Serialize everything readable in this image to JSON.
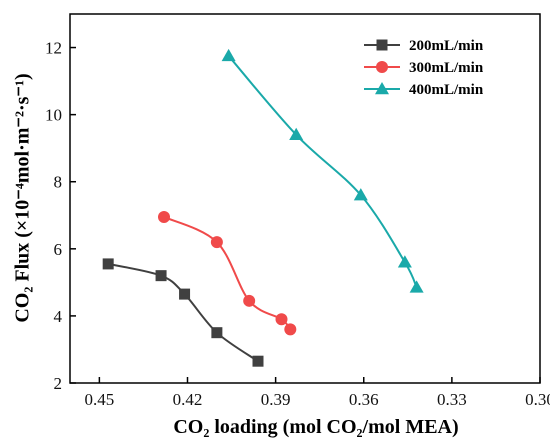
{
  "chart_data": {
    "type": "line",
    "title": "",
    "xlabel": "CO₂ loading (mol CO₂/mol MEA)",
    "ylabel": "CO₂ Flux (×10⁻⁴mol·m⁻²·s⁻¹)",
    "x_reversed": true,
    "xlim": [
      0.3,
      0.46
    ],
    "ylim": [
      2,
      13
    ],
    "xticks": [
      "0.45",
      "0.42",
      "0.39",
      "0.36",
      "0.33",
      "0.30"
    ],
    "yticks": [
      "2",
      "4",
      "6",
      "8",
      "10",
      "12"
    ],
    "grid": false,
    "legend_position": "top-right",
    "series": [
      {
        "name": "200mL/min",
        "marker": "square",
        "color": "#404040",
        "x": [
          0.447,
          0.429,
          0.421,
          0.41,
          0.396
        ],
        "y": [
          5.55,
          5.2,
          4.65,
          3.5,
          2.65
        ]
      },
      {
        "name": "300mL/min",
        "marker": "circle",
        "color": "#f04a4a",
        "x": [
          0.428,
          0.41,
          0.399,
          0.388,
          0.385
        ],
        "y": [
          6.95,
          6.2,
          4.45,
          3.9,
          3.6
        ]
      },
      {
        "name": "400mL/min",
        "marker": "triangle",
        "color": "#1aa9a9",
        "x": [
          0.406,
          0.383,
          0.361,
          0.346,
          0.342
        ],
        "y": [
          11.75,
          9.4,
          7.6,
          5.6,
          4.85
        ]
      }
    ]
  }
}
